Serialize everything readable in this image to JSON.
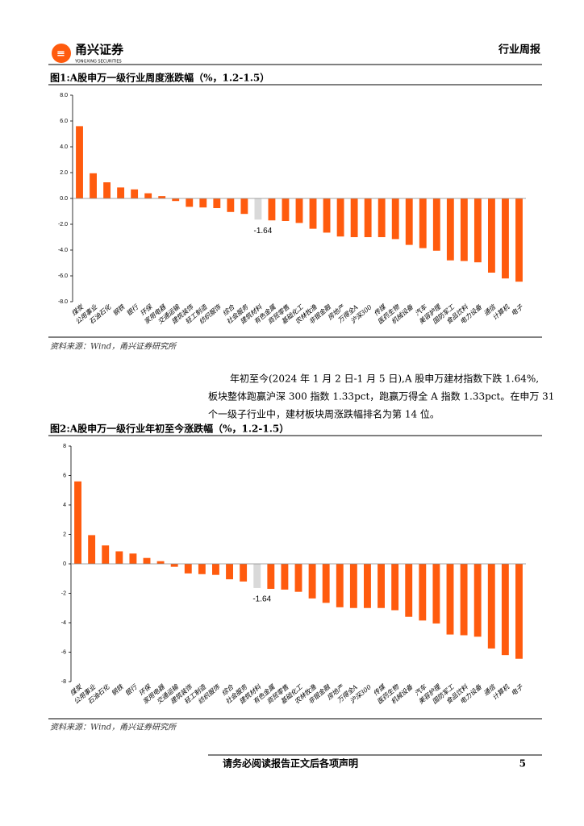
{
  "header": {
    "brand": "甬兴证券",
    "brand_en": "YONGXING SECURITIES",
    "report_type": "行业周报"
  },
  "chart_data": [
    {
      "type": "bar",
      "title": "图1:A股申万一级行业周度涨跌幅（%，1.2-1.5）",
      "categories": [
        "煤炭",
        "公用事业",
        "石油石化",
        "钢铁",
        "银行",
        "环保",
        "家用电器",
        "交通运输",
        "建筑装饰",
        "轻工制造",
        "纺织服饰",
        "综合",
        "社会服务",
        "建筑材料",
        "有色金属",
        "商贸零售",
        "基础化工",
        "农林牧渔",
        "非银金融",
        "房地产",
        "万得全A",
        "沪深300",
        "传媒",
        "医药生物",
        "机械设备",
        "汽车",
        "美容护理",
        "国防军工",
        "食品饮料",
        "电力设备",
        "通信",
        "计算机",
        "电子"
      ],
      "values": [
        5.6,
        1.95,
        1.25,
        0.85,
        0.7,
        0.4,
        0.18,
        -0.2,
        -0.65,
        -0.7,
        -0.75,
        -1.05,
        -1.2,
        -1.64,
        -1.7,
        -1.75,
        -1.9,
        -2.35,
        -2.65,
        -2.95,
        -3.0,
        -3.0,
        -3.0,
        -3.15,
        -3.6,
        -3.85,
        -4.05,
        -4.8,
        -4.85,
        -4.95,
        -5.75,
        -6.2,
        -6.45
      ],
      "value_labels": [
        null,
        null,
        null,
        null,
        null,
        null,
        null,
        null,
        null,
        null,
        null,
        null,
        null,
        "-1.64",
        null,
        null,
        null,
        null,
        null,
        null,
        null,
        null,
        null,
        null,
        null,
        null,
        null,
        null,
        null,
        null,
        null,
        null,
        null
      ],
      "colors": [
        "#ff5b0e",
        "#ff5b0e",
        "#ff5b0e",
        "#ff5b0e",
        "#ff5b0e",
        "#ff5b0e",
        "#ff5b0e",
        "#ff5b0e",
        "#ff5b0e",
        "#ff5b0e",
        "#ff5b0e",
        "#ff5b0e",
        "#ff5b0e",
        "#d9d9d9",
        "#ff5b0e",
        "#ff5b0e",
        "#ff5b0e",
        "#ff5b0e",
        "#ff5b0e",
        "#ff5b0e",
        "#ff5b0e",
        "#ff5b0e",
        "#ff5b0e",
        "#ff5b0e",
        "#ff5b0e",
        "#ff5b0e",
        "#ff5b0e",
        "#ff5b0e",
        "#ff5b0e",
        "#ff5b0e",
        "#ff5b0e",
        "#ff5b0e",
        "#ff5b0e"
      ],
      "ylim": [
        -8,
        8
      ],
      "yticks": [
        {
          "value": -8,
          "label": "-8.0"
        },
        {
          "value": -6,
          "label": "-6.0"
        },
        {
          "value": -4,
          "label": "-4.0"
        },
        {
          "value": -2,
          "label": "-2.0"
        },
        {
          "value": 0,
          "label": "0.0"
        },
        {
          "value": 2,
          "label": "2.0"
        },
        {
          "value": 4,
          "label": "4.0"
        },
        {
          "value": 6,
          "label": "6.0"
        },
        {
          "value": 8,
          "label": "8.0"
        }
      ],
      "grid": false,
      "source": "资料来源：Wind，甬兴证券研究所"
    },
    {
      "type": "bar",
      "title": "图2:A股申万一级行业年初至今涨跌幅（%，1.2-1.5）",
      "categories": [
        "煤炭",
        "公用事业",
        "石油石化",
        "钢铁",
        "银行",
        "环保",
        "家用电器",
        "交通运输",
        "建筑装饰",
        "轻工制造",
        "纺织服饰",
        "综合",
        "社会服务",
        "建筑材料",
        "有色金属",
        "商贸零售",
        "基础化工",
        "农林牧渔",
        "非银金融",
        "房地产",
        "万得全A",
        "沪深300",
        "传媒",
        "医药生物",
        "机械设备",
        "汽车",
        "美容护理",
        "国防军工",
        "食品饮料",
        "电力设备",
        "通信",
        "计算机",
        "电子"
      ],
      "values": [
        5.6,
        1.95,
        1.25,
        0.85,
        0.7,
        0.4,
        0.18,
        -0.2,
        -0.65,
        -0.7,
        -0.75,
        -1.05,
        -1.2,
        -1.64,
        -1.7,
        -1.75,
        -1.9,
        -2.35,
        -2.65,
        -2.95,
        -3.0,
        -3.0,
        -3.0,
        -3.15,
        -3.6,
        -3.85,
        -4.05,
        -4.8,
        -4.85,
        -4.95,
        -5.75,
        -6.2,
        -6.45
      ],
      "value_labels": [
        null,
        null,
        null,
        null,
        null,
        null,
        null,
        null,
        null,
        null,
        null,
        null,
        null,
        "-1.64",
        null,
        null,
        null,
        null,
        null,
        null,
        null,
        null,
        null,
        null,
        null,
        null,
        null,
        null,
        null,
        null,
        null,
        null,
        null
      ],
      "colors": [
        "#ff5b0e",
        "#ff5b0e",
        "#ff5b0e",
        "#ff5b0e",
        "#ff5b0e",
        "#ff5b0e",
        "#ff5b0e",
        "#ff5b0e",
        "#ff5b0e",
        "#ff5b0e",
        "#ff5b0e",
        "#ff5b0e",
        "#ff5b0e",
        "#d9d9d9",
        "#ff5b0e",
        "#ff5b0e",
        "#ff5b0e",
        "#ff5b0e",
        "#ff5b0e",
        "#ff5b0e",
        "#ff5b0e",
        "#ff5b0e",
        "#ff5b0e",
        "#ff5b0e",
        "#ff5b0e",
        "#ff5b0e",
        "#ff5b0e",
        "#ff5b0e",
        "#ff5b0e",
        "#ff5b0e",
        "#ff5b0e",
        "#ff5b0e",
        "#ff5b0e"
      ],
      "ylim": [
        -8,
        8
      ],
      "yticks": [
        -8,
        -6,
        -4,
        -2,
        0,
        2,
        4,
        6,
        8
      ],
      "grid": false,
      "source": "资料来源：Wind，甬兴证券研究所"
    }
  ],
  "body": {
    "lines": [
      "年初至今(2024 年 1 月 2 日-1 月 5 日),A 股申万建材指数下跌 1.64%,",
      "板块整体跑赢沪深 300 指数 1.33pct，跑赢万得全 A 指数 1.33pct。在申万 31",
      "个一级子行业中，建材板块周涨跌幅排名为第 14 位。"
    ]
  },
  "footer": {
    "disclaimer": "请务必阅读报告正文后各项声明",
    "page": "5"
  }
}
